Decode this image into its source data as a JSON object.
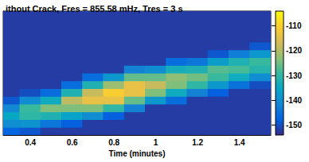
{
  "chart_data": {
    "type": "heatmap",
    "title": "ithout Crack, Fres = 855.58 mHz, Tres = 3 s",
    "x_label": "Time (minutes)",
    "x": [
      0.3,
      0.4,
      0.5,
      0.6,
      0.7,
      0.8,
      0.9,
      1.0,
      1.1,
      1.2,
      1.3,
      1.4,
      1.5
    ],
    "z": [
      [
        -147,
        -140,
        -135,
        -141,
        -149,
        -152,
        -152,
        -152,
        -152,
        -152,
        -152,
        -152,
        -152,
        -152,
        -152,
        -152
      ],
      [
        -149,
        -139,
        -130,
        -129,
        -140,
        -150,
        -152,
        -152,
        -152,
        -152,
        -152,
        -152,
        -152,
        -152,
        -152,
        -152
      ],
      [
        -152,
        -144,
        -132,
        -124,
        -134,
        -146,
        -152,
        -152,
        -152,
        -152,
        -152,
        -152,
        -152,
        -152,
        -152,
        -152
      ],
      [
        -152,
        -148,
        -136,
        -124,
        -119,
        -132,
        -146,
        -152,
        -152,
        -152,
        -152,
        -152,
        -152,
        -152,
        -152,
        -152
      ],
      [
        -152,
        -152,
        -140,
        -124,
        -114,
        -118,
        -132,
        -146,
        -152,
        -152,
        -152,
        -152,
        -152,
        -152,
        -152,
        -152
      ],
      [
        -152,
        -152,
        -148,
        -130,
        -114,
        -111,
        -122,
        -138,
        -152,
        -152,
        -152,
        -152,
        -152,
        -152,
        -152,
        -152
      ],
      [
        -152,
        -152,
        -152,
        -142,
        -126,
        -114,
        -114,
        -126,
        -142,
        -152,
        -152,
        -152,
        -152,
        -152,
        -152,
        -152
      ],
      [
        -152,
        -152,
        -152,
        -152,
        -138,
        -124,
        -118,
        -126,
        -140,
        -152,
        -152,
        -152,
        -152,
        -152,
        -152,
        -152
      ],
      [
        -152,
        -152,
        -152,
        -152,
        -146,
        -134,
        -124,
        -123,
        -133,
        -146,
        -152,
        -152,
        -152,
        -152,
        -152,
        -152
      ],
      [
        -152,
        -152,
        -152,
        -152,
        -152,
        -142,
        -130,
        -125,
        -132,
        -144,
        -152,
        -152,
        -152,
        -152,
        -152,
        -152
      ],
      [
        -152,
        -152,
        -152,
        -152,
        -152,
        -148,
        -138,
        -129,
        -127,
        -137,
        -149,
        -152,
        -152,
        -152,
        -152,
        -152
      ],
      [
        -152,
        -152,
        -152,
        -152,
        -152,
        -152,
        -145,
        -134,
        -128,
        -132,
        -143,
        -152,
        -152,
        -152,
        -152,
        -152
      ],
      [
        -152,
        -152,
        -152,
        -152,
        -152,
        -152,
        -150,
        -140,
        -131,
        -129,
        -138,
        -149,
        -152,
        -152,
        -152,
        -152
      ]
    ],
    "xlim": [
      0.27,
      1.55
    ],
    "xticks": [
      0.4,
      0.6,
      0.8,
      1,
      1.2,
      1.4
    ],
    "colorbar_lim": [
      -154,
      -104
    ],
    "colorbar_ticks": [
      -150,
      -140,
      -130,
      -120,
      -110
    ],
    "tick_labels": "x"
  }
}
